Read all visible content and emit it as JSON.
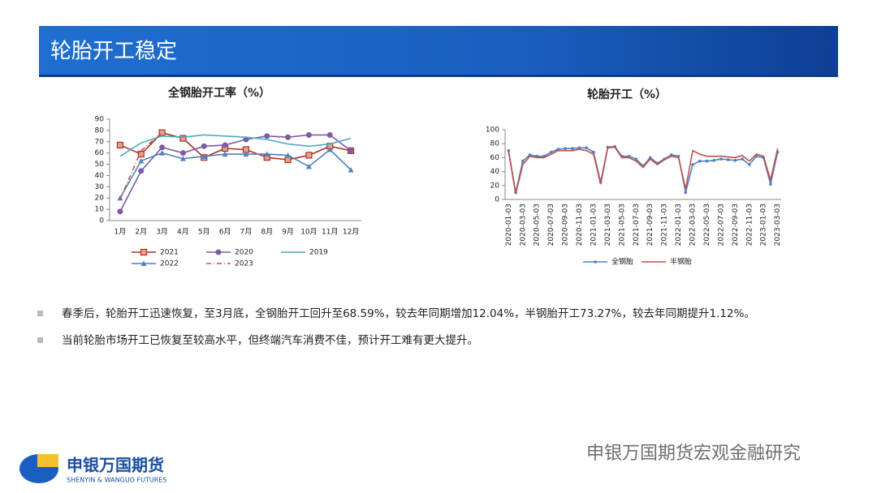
{
  "header": {
    "title": "轮胎开工稳定"
  },
  "chart_data": [
    {
      "type": "line",
      "title": "全钢胎开工率（%）",
      "categories": [
        "1月",
        "2月",
        "3月",
        "4月",
        "5月",
        "6月",
        "7月",
        "8月",
        "9月",
        "10月",
        "11月",
        "12月"
      ],
      "ylim": [
        0,
        90
      ],
      "yticks": [
        0,
        10,
        20,
        30,
        40,
        50,
        60,
        70,
        80,
        90
      ],
      "grid": false,
      "series": [
        {
          "name": "2021",
          "color": "#a93226",
          "marker": "square",
          "values": [
            67,
            59,
            78,
            73,
            56,
            64,
            63,
            56,
            54,
            58,
            66,
            62
          ]
        },
        {
          "name": "2020",
          "color": "#7d5ba6",
          "marker": "circle",
          "values": [
            8,
            44,
            65,
            60,
            66,
            67,
            72,
            75,
            74,
            76,
            76,
            62
          ]
        },
        {
          "name": "2019",
          "color": "#4bacc6",
          "marker": "none",
          "values": [
            57,
            69,
            75,
            74,
            76,
            75,
            74,
            72,
            68,
            66,
            68,
            73
          ]
        },
        {
          "name": "2022",
          "color": "#4f81bd",
          "marker": "triangle",
          "values": [
            20,
            53,
            60,
            55,
            57,
            59,
            59,
            59,
            58,
            48,
            63,
            45
          ]
        },
        {
          "name": "2023",
          "color": "#c0504d",
          "marker": "none",
          "dash": true,
          "values": [
            19,
            62,
            78,
            null,
            null,
            null,
            null,
            null,
            null,
            null,
            null,
            null
          ]
        }
      ]
    },
    {
      "type": "line",
      "title": "轮胎开工（%）",
      "categories": [
        "2020-01-03",
        null,
        "2020-03-03",
        null,
        "2020-05-03",
        null,
        "2020-07-03",
        null,
        "2020-09-03",
        null,
        "2020-11-03",
        null,
        "2021-01-03",
        null,
        "2021-03-03",
        null,
        "2021-05-03",
        null,
        "2021-07-03",
        null,
        "2021-09-03",
        null,
        "2021-11-03",
        null,
        "2022-01-03",
        null,
        "2022-03-03",
        null,
        "2022-05-03",
        null,
        "2022-07-03",
        null,
        "2022-09-03",
        null,
        "2022-11-03",
        null,
        "2023-01-03",
        null,
        "2023-03-03"
      ],
      "ylim": [
        0,
        100
      ],
      "yticks": [
        0,
        20,
        40,
        60,
        80,
        100
      ],
      "grid": false,
      "series": [
        {
          "name": "全钢胎",
          "color": "#4f81bd",
          "marker": "dot",
          "values": [
            70,
            10,
            55,
            64,
            62,
            62,
            68,
            72,
            73,
            73,
            74,
            74,
            68,
            25,
            75,
            76,
            62,
            62,
            58,
            48,
            60,
            52,
            58,
            64,
            62,
            10,
            50,
            55,
            55,
            56,
            58,
            57,
            56,
            58,
            50,
            62,
            60,
            22,
            68
          ]
        },
        {
          "name": "半钢胎",
          "color": "#c0504d",
          "marker": "none",
          "values": [
            68,
            8,
            50,
            62,
            60,
            60,
            65,
            70,
            70,
            70,
            72,
            70,
            65,
            22,
            74,
            75,
            60,
            60,
            55,
            46,
            58,
            50,
            57,
            62,
            60,
            15,
            70,
            65,
            62,
            62,
            62,
            61,
            60,
            63,
            55,
            65,
            62,
            28,
            73
          ]
        }
      ]
    }
  ],
  "bullets": [
    "春季后，轮胎开工迅速恢复，至3月底，全钢胎开工回升至68.59%，较去年同期增加12.04%，半钢胎开工73.27%，较去年同期提升1.12%。",
    "当前轮胎市场开工已恢复至较高水平，但终端汽车消费不佳，预计开工难有更大提升。"
  ],
  "logo": {
    "name": "申银万国期货",
    "subtitle": "SHENYIN & WANGUO FUTURES"
  },
  "watermark": "申银万国期货宏观金融研究"
}
